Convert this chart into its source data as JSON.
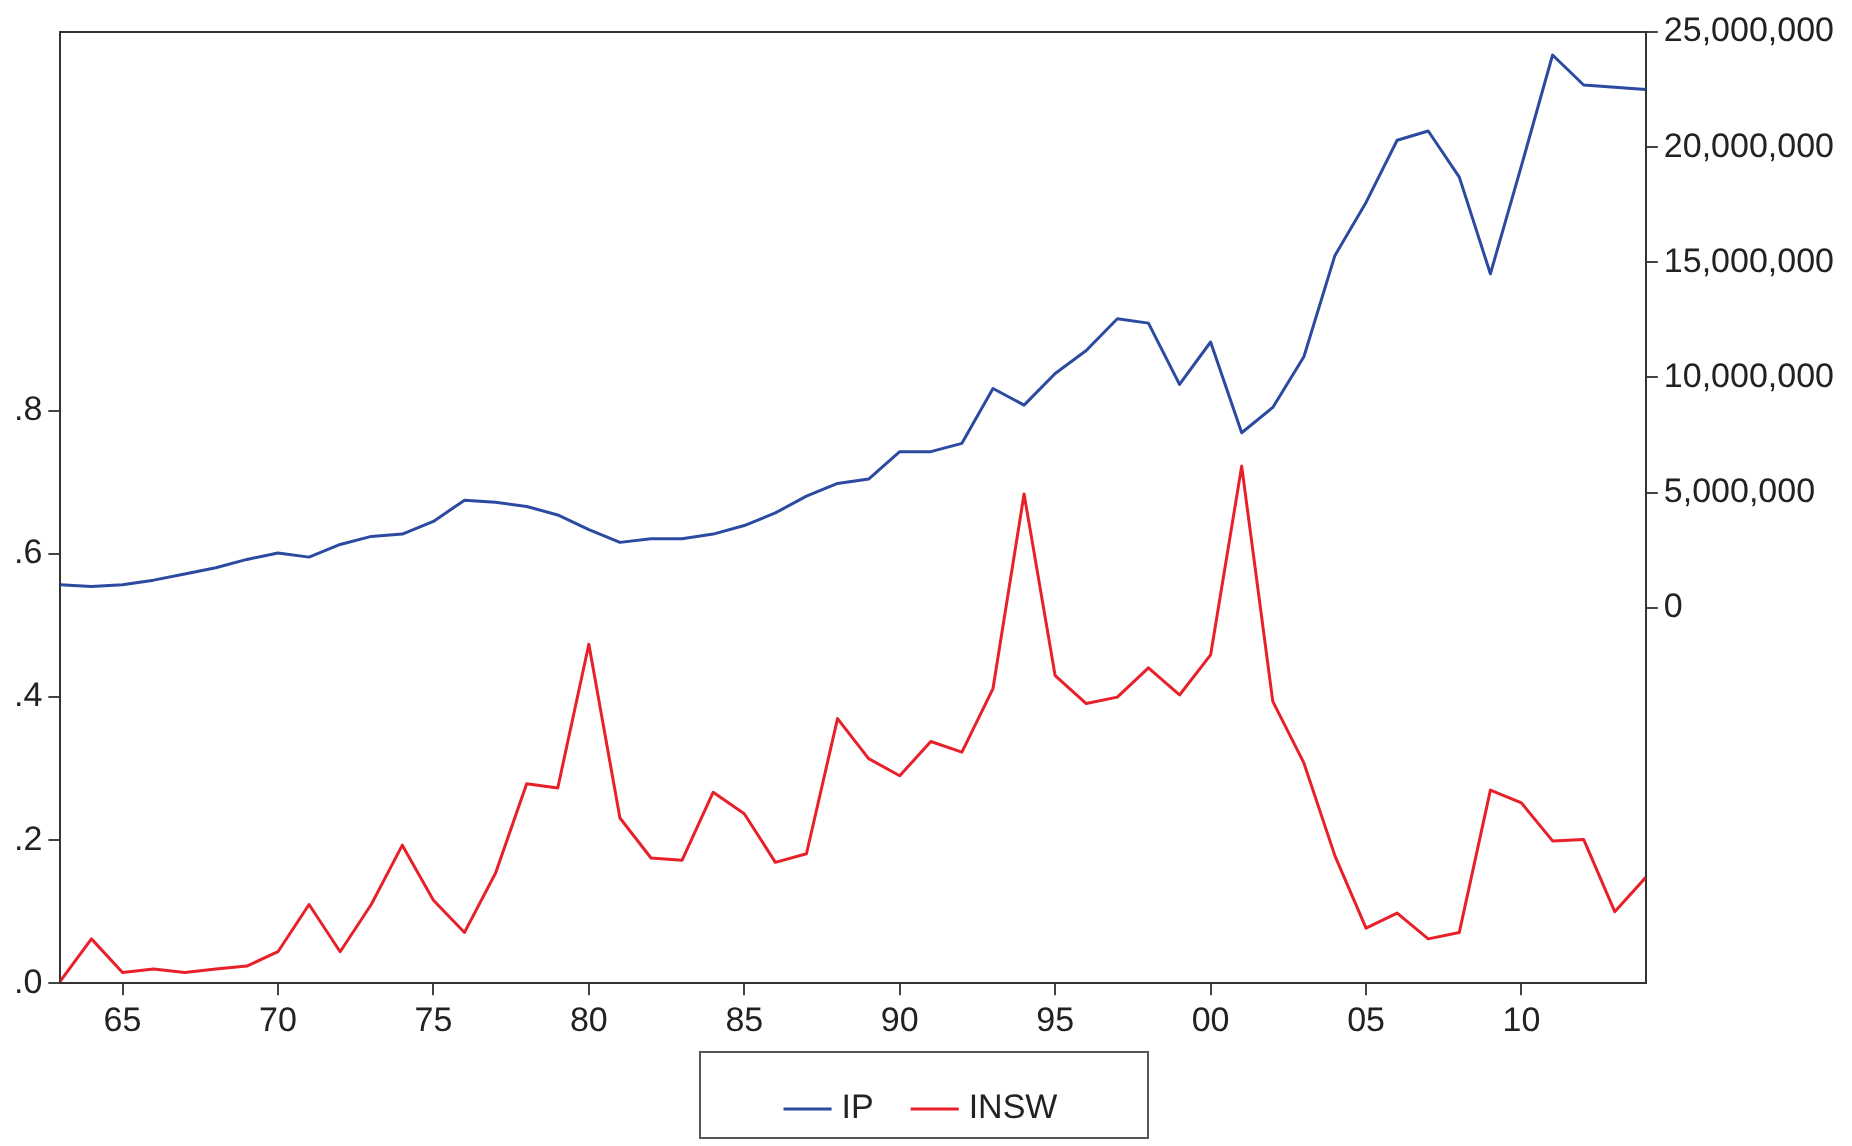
{
  "chart_data": {
    "type": "line",
    "x": [
      1963,
      1964,
      1965,
      1966,
      1967,
      1968,
      1969,
      1970,
      1971,
      1972,
      1973,
      1974,
      1975,
      1976,
      1977,
      1978,
      1979,
      1980,
      1981,
      1982,
      1983,
      1984,
      1985,
      1986,
      1987,
      1988,
      1989,
      1990,
      1991,
      1992,
      1993,
      1994,
      1995,
      1996,
      1997,
      1998,
      1999,
      2000,
      2001,
      2002,
      2003,
      2004,
      2005,
      2006,
      2007,
      2008,
      2009,
      2010,
      2011,
      2012,
      2013,
      2014
    ],
    "series": [
      {
        "name": "IP",
        "color": "#2b4aa0",
        "axis": "y2",
        "values": [
          1000000,
          920000,
          1000000,
          1200000,
          1470000,
          1740000,
          2100000,
          2380000,
          2200000,
          2750000,
          3100000,
          3200000,
          3750000,
          4670000,
          4580000,
          4400000,
          4030000,
          3390000,
          2840000,
          3000000,
          3000000,
          3200000,
          3570000,
          4120000,
          4850000,
          5400000,
          5590000,
          6780000,
          6780000,
          7140000,
          9520000,
          8800000,
          10170000,
          11170000,
          12550000,
          12360000,
          9700000,
          11540000,
          7600000,
          8700000,
          10900000,
          15300000,
          17600000,
          20300000,
          20700000,
          18700000,
          14500000,
          19200000,
          24000000,
          22700000,
          22600000,
          22500000
        ]
      },
      {
        "name": "INSW",
        "color": "#e8202a",
        "values": [
          0.003,
          0.062,
          0.015,
          0.02,
          0.015,
          0.02,
          0.024,
          0.044,
          0.11,
          0.044,
          0.11,
          0.193,
          0.116,
          0.071,
          0.154,
          0.279,
          0.273,
          0.474,
          0.231,
          0.175,
          0.172,
          0.267,
          0.237,
          0.169,
          0.181,
          0.37,
          0.314,
          0.29,
          0.338,
          0.323,
          0.412,
          0.684,
          0.43,
          0.391,
          0.4,
          0.441,
          0.403,
          0.459,
          0.723,
          0.394,
          0.308,
          0.178,
          0.077,
          0.098,
          0.062,
          0.071,
          0.27,
          0.252,
          0.199,
          0.201,
          0.1,
          0.148
        ]
      }
    ],
    "xlim": [
      1963,
      2014
    ],
    "xticks": [
      {
        "value": 1965,
        "label": "65"
      },
      {
        "value": 1970,
        "label": "70"
      },
      {
        "value": 1975,
        "label": "75"
      },
      {
        "value": 1980,
        "label": "80"
      },
      {
        "value": 1985,
        "label": "85"
      },
      {
        "value": 1990,
        "label": "90"
      },
      {
        "value": 1995,
        "label": "95"
      },
      {
        "value": 2000,
        "label": "00"
      },
      {
        "value": 2005,
        "label": "05"
      },
      {
        "value": 2010,
        "label": "10"
      }
    ],
    "ylim": [
      0,
      1.33
    ],
    "yticks": [
      {
        "value": 0,
        "label": ".0"
      },
      {
        "value": 0.2,
        "label": ".2"
      },
      {
        "value": 0.4,
        "label": ".4"
      },
      {
        "value": 0.6,
        "label": ".6"
      },
      {
        "value": 0.8,
        "label": ".8"
      }
    ],
    "y2lim": [
      -16300000,
      25000000
    ],
    "y2ticks": [
      0,
      {
        "value": 5000000,
        "label": "5,000,000"
      },
      {
        "value": 10000000,
        "label": "10,000,000"
      },
      {
        "value": 15000000,
        "label": "15,000,000"
      },
      {
        "value": 20000000,
        "label": "20,000,000"
      },
      {
        "value": 25000000,
        "label": "25,000,000"
      }
    ],
    "grid": false,
    "legend": "bottom",
    "marker": "none",
    "line_style": "solid"
  }
}
